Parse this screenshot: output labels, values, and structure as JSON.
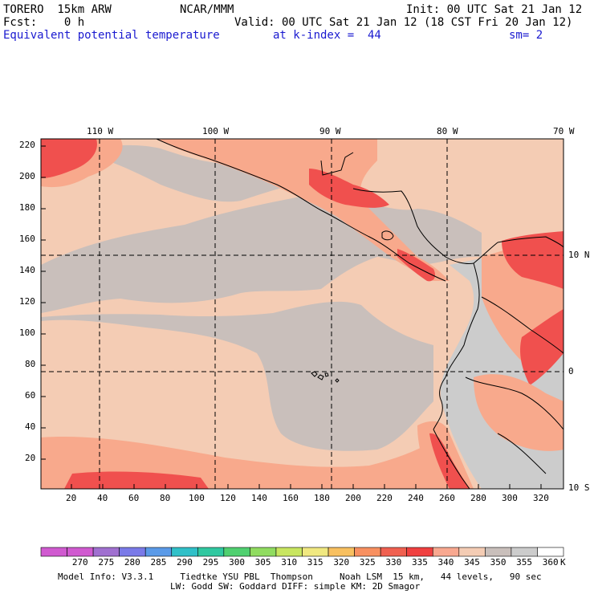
{
  "header": {
    "model": "TORERO  15km ARW",
    "org": "NCAR/MMM",
    "init": "Init: 00 UTC Sat 21 Jan 12",
    "fcst": "Fcst:    0 h",
    "valid": "Valid: 00 UTC Sat 21 Jan 12 (18 CST Fri 20 Jan 12)",
    "field": "Equivalent potential temperature",
    "kindex": "at k-index =  44",
    "smooth": "sm= 2"
  },
  "map": {
    "top_lon_labels": [
      "110 W",
      "100 W",
      "90 W",
      "80 W",
      "70 W"
    ],
    "right_lat_labels": [
      "10 N",
      "0",
      "10 S"
    ],
    "left_grid_labels": [
      "220",
      "200",
      "180",
      "160",
      "140",
      "120",
      "100",
      "80",
      "60",
      "40",
      "20"
    ],
    "bottom_grid_labels": [
      "20",
      "40",
      "60",
      "80",
      "100",
      "120",
      "140",
      "160",
      "180",
      "200",
      "220",
      "240",
      "260",
      "280",
      "300",
      "320"
    ],
    "colors": {
      "ocean_cool": "#c9bfbb",
      "ocean_warm": "#f4ccb4",
      "warm": "#f8a98c",
      "hot": "#f0504e",
      "land_grey": "#cccccc"
    }
  },
  "legend": {
    "labels": [
      "270",
      "275",
      "280",
      "285",
      "290",
      "295",
      "300",
      "305",
      "310",
      "315",
      "320",
      "325",
      "330",
      "335",
      "340",
      "345",
      "350",
      "355",
      "360"
    ],
    "unit": "K",
    "colors": [
      "#d05ad0",
      "#a070d0",
      "#7a7ae8",
      "#5a9ae8",
      "#30c0c8",
      "#30c8a0",
      "#50d070",
      "#90dc60",
      "#c8e660",
      "#f0e880",
      "#f8c060",
      "#f89060",
      "#f06050",
      "#f04040",
      "#f8a890",
      "#f4ccb4",
      "#c9bfbb",
      "#cccccc",
      "#ffffff"
    ]
  },
  "footer": {
    "line1": "Model Info: V3.3.1     Tiedtke YSU PBL  Thompson     Noah LSM  15 km,   44 levels,   90 sec",
    "line2": "LW: Godd SW: Goddard DIFF: simple KM: 2D Smagor"
  }
}
